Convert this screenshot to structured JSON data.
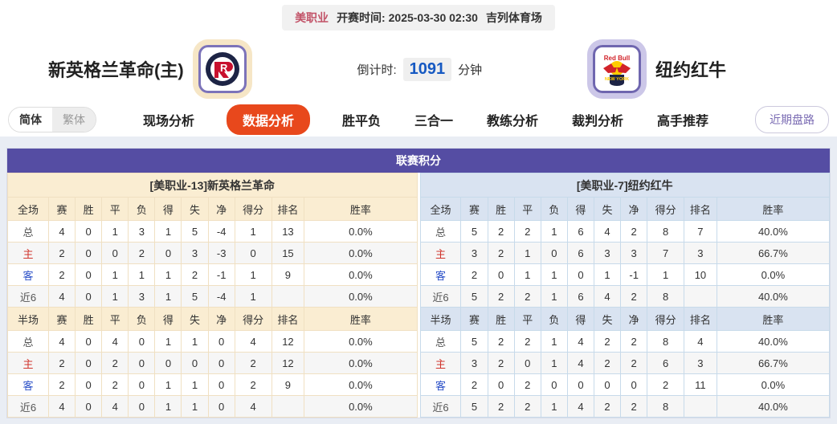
{
  "top_bar": {
    "league": "美职业",
    "kickoff_label": "开赛时间:",
    "kickoff_time": "2025-03-30 02:30",
    "venue": "吉列体育场"
  },
  "header": {
    "home_team": "新英格兰革命(主)",
    "away_team": "纽约红牛",
    "countdown_label": "倒计时:",
    "countdown_value": "1091",
    "countdown_unit": "分钟"
  },
  "toolbar": {
    "lang_simplified": "简体",
    "lang_traditional": "繁体",
    "tabs": [
      {
        "label": "现场分析",
        "active": false
      },
      {
        "label": "数据分析",
        "active": true
      },
      {
        "label": "胜平负",
        "active": false
      },
      {
        "label": "三合一",
        "active": false
      },
      {
        "label": "教练分析",
        "active": false
      },
      {
        "label": "裁判分析",
        "active": false
      },
      {
        "label": "高手推荐",
        "active": false
      }
    ],
    "recent_button": "近期盘路"
  },
  "colors": {
    "table_header_purple": "#554da3",
    "active_tab_orange": "#e8481c",
    "home_panel_cream": "#faedd2",
    "away_panel_blue": "#d9e3f1",
    "countdown_blue": "#1659c2",
    "home_row_red": "#d0342c",
    "away_row_blue": "#2b50c8"
  },
  "table": {
    "title": "联赛积分",
    "home": {
      "subtitle": "[美职业-13]新英格兰革命",
      "full": {
        "headers": [
          "全场",
          "赛",
          "胜",
          "平",
          "负",
          "得",
          "失",
          "净",
          "得分",
          "排名",
          "胜率"
        ],
        "rows": [
          {
            "label": "总",
            "type": "total",
            "cells": [
              "4",
              "0",
              "1",
              "3",
              "1",
              "5",
              "-4",
              "1",
              "13",
              "0.0%"
            ]
          },
          {
            "label": "主",
            "type": "home",
            "cells": [
              "2",
              "0",
              "0",
              "2",
              "0",
              "3",
              "-3",
              "0",
              "15",
              "0.0%"
            ]
          },
          {
            "label": "客",
            "type": "away",
            "cells": [
              "2",
              "0",
              "1",
              "1",
              "1",
              "2",
              "-1",
              "1",
              "9",
              "0.0%"
            ]
          },
          {
            "label": "近6",
            "type": "recent",
            "cells": [
              "4",
              "0",
              "1",
              "3",
              "1",
              "5",
              "-4",
              "1",
              "",
              "0.0%"
            ]
          }
        ]
      },
      "half": {
        "headers": [
          "半场",
          "赛",
          "胜",
          "平",
          "负",
          "得",
          "失",
          "净",
          "得分",
          "排名",
          "胜率"
        ],
        "rows": [
          {
            "label": "总",
            "type": "total",
            "cells": [
              "4",
              "0",
              "4",
              "0",
              "1",
              "1",
              "0",
              "4",
              "12",
              "0.0%"
            ]
          },
          {
            "label": "主",
            "type": "home",
            "cells": [
              "2",
              "0",
              "2",
              "0",
              "0",
              "0",
              "0",
              "2",
              "12",
              "0.0%"
            ]
          },
          {
            "label": "客",
            "type": "away",
            "cells": [
              "2",
              "0",
              "2",
              "0",
              "1",
              "1",
              "0",
              "2",
              "9",
              "0.0%"
            ]
          },
          {
            "label": "近6",
            "type": "recent",
            "cells": [
              "4",
              "0",
              "4",
              "0",
              "1",
              "1",
              "0",
              "4",
              "",
              "0.0%"
            ]
          }
        ]
      }
    },
    "away": {
      "subtitle": "[美职业-7]纽约红牛",
      "full": {
        "headers": [
          "全场",
          "赛",
          "胜",
          "平",
          "负",
          "得",
          "失",
          "净",
          "得分",
          "排名",
          "胜率"
        ],
        "rows": [
          {
            "label": "总",
            "type": "total",
            "cells": [
              "5",
              "2",
              "2",
              "1",
              "6",
              "4",
              "2",
              "8",
              "7",
              "40.0%"
            ]
          },
          {
            "label": "主",
            "type": "home",
            "cells": [
              "3",
              "2",
              "1",
              "0",
              "6",
              "3",
              "3",
              "7",
              "3",
              "66.7%"
            ]
          },
          {
            "label": "客",
            "type": "away",
            "cells": [
              "2",
              "0",
              "1",
              "1",
              "0",
              "1",
              "-1",
              "1",
              "10",
              "0.0%"
            ]
          },
          {
            "label": "近6",
            "type": "recent",
            "cells": [
              "5",
              "2",
              "2",
              "1",
              "6",
              "4",
              "2",
              "8",
              "",
              "40.0%"
            ]
          }
        ]
      },
      "half": {
        "headers": [
          "半场",
          "赛",
          "胜",
          "平",
          "负",
          "得",
          "失",
          "净",
          "得分",
          "排名",
          "胜率"
        ],
        "rows": [
          {
            "label": "总",
            "type": "total",
            "cells": [
              "5",
              "2",
              "2",
              "1",
              "4",
              "2",
              "2",
              "8",
              "4",
              "40.0%"
            ]
          },
          {
            "label": "主",
            "type": "home",
            "cells": [
              "3",
              "2",
              "0",
              "1",
              "4",
              "2",
              "2",
              "6",
              "3",
              "66.7%"
            ]
          },
          {
            "label": "客",
            "type": "away",
            "cells": [
              "2",
              "0",
              "2",
              "0",
              "0",
              "0",
              "0",
              "2",
              "11",
              "0.0%"
            ]
          },
          {
            "label": "近6",
            "type": "recent",
            "cells": [
              "5",
              "2",
              "2",
              "1",
              "4",
              "2",
              "2",
              "8",
              "",
              "40.0%"
            ]
          }
        ]
      }
    }
  }
}
